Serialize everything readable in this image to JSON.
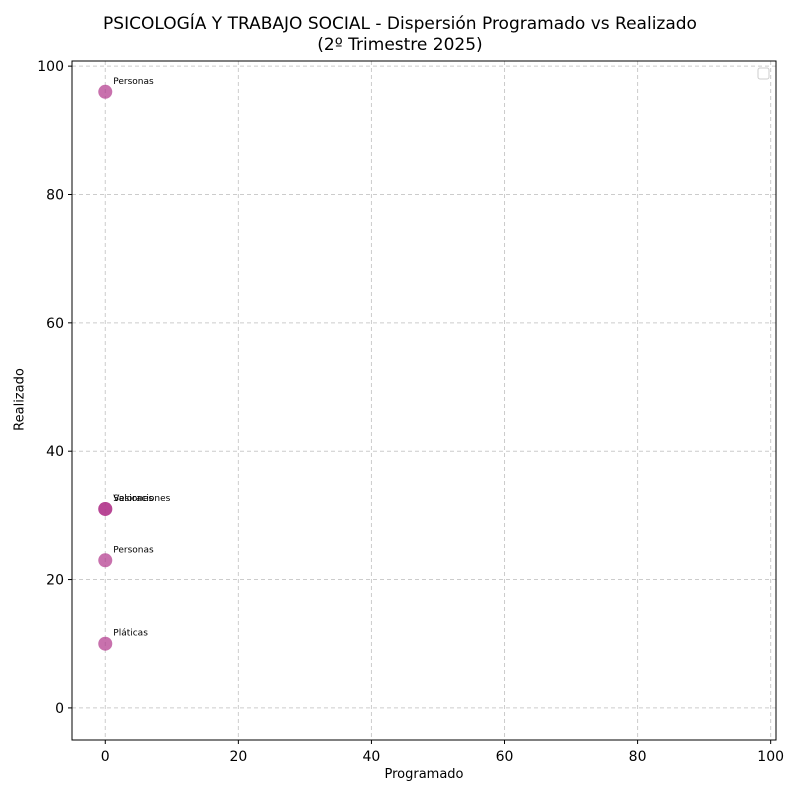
{
  "chart_data": {
    "type": "scatter",
    "title": "PSICOLOGÍA Y TRABAJO SOCIAL - Dispersión Programado vs Realizado",
    "subtitle": "(2º Trimestre 2025)",
    "xlabel": "Programado",
    "ylabel": "Realizado",
    "xlim": [
      -5,
      100.8
    ],
    "ylim": [
      -5,
      100.8
    ],
    "xticks": [
      0,
      20,
      40,
      60,
      80,
      100
    ],
    "yticks": [
      0,
      20,
      40,
      60,
      80,
      100
    ],
    "grid": true,
    "legend": {
      "position": "upper right",
      "entries": []
    },
    "marker_color": "#b0348a",
    "points": [
      {
        "label": "Personas",
        "x": 0,
        "y": 96
      },
      {
        "label": "Valoraciones",
        "x": 0,
        "y": 31
      },
      {
        "label": "Sesiones",
        "x": 0,
        "y": 31
      },
      {
        "label": "Personas",
        "x": 0,
        "y": 23
      },
      {
        "label": "Pláticas",
        "x": 0,
        "y": 10
      }
    ]
  }
}
